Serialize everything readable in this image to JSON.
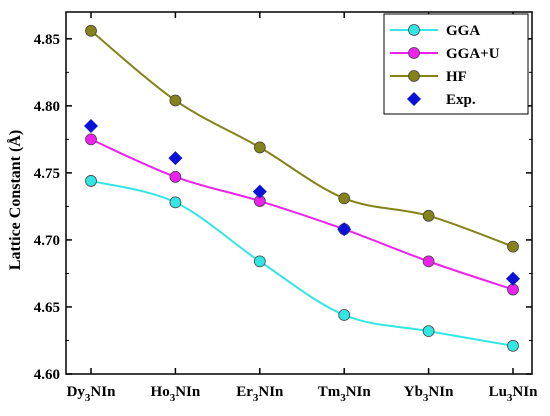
{
  "chart_data": {
    "type": "line",
    "title": "",
    "xlabel": "",
    "ylabel": "Lattice Constant (Å)",
    "categories": [
      {
        "base": "Dy",
        "sub": "3",
        "rest": "NIn"
      },
      {
        "base": "Ho",
        "sub": "3",
        "rest": "NIn"
      },
      {
        "base": "Er",
        "sub": "3",
        "rest": "NIn"
      },
      {
        "base": "Tm",
        "sub": "3",
        "rest": "NIn"
      },
      {
        "base": "Yb",
        "sub": "3",
        "rest": "NIn"
      },
      {
        "base": "Lu",
        "sub": "3",
        "rest": "NIn"
      }
    ],
    "ylim": [
      4.6,
      4.87
    ],
    "yticks": [
      "4.60",
      "4.65",
      "4.70",
      "4.75",
      "4.80",
      "4.85"
    ],
    "legend_position": "top-right",
    "grid": false,
    "series": [
      {
        "name": "GGA",
        "color": "#33e6e6",
        "marker": "circle",
        "line": true,
        "values": [
          4.744,
          4.728,
          4.684,
          4.644,
          4.632,
          4.621
        ]
      },
      {
        "name": "GGA+U",
        "color": "#ee22ee",
        "marker": "circle",
        "line": true,
        "values": [
          4.775,
          4.747,
          4.729,
          4.708,
          4.684,
          4.663
        ]
      },
      {
        "name": "HF",
        "color": "#848218",
        "marker": "circle",
        "line": true,
        "values": [
          4.856,
          4.804,
          4.769,
          4.731,
          4.718,
          4.695
        ]
      },
      {
        "name": "Exp.",
        "color": "#0a12d8",
        "marker": "diamond",
        "line": false,
        "values": [
          4.785,
          4.761,
          4.736,
          4.708,
          null,
          4.671
        ]
      }
    ]
  }
}
